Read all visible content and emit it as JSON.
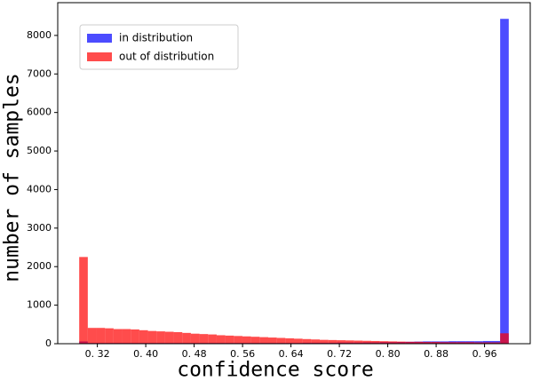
{
  "chart_data": {
    "type": "histogram",
    "xlabel": "confidence score",
    "ylabel": "number of samples",
    "bins": [
      0.29,
      0.3042,
      0.3184,
      0.3326,
      0.3468,
      0.361,
      0.3752,
      0.3894,
      0.4036,
      0.4178,
      0.432,
      0.4462,
      0.4604,
      0.4746,
      0.4888,
      0.503,
      0.5172,
      0.5314,
      0.5456,
      0.5598,
      0.574,
      0.5882,
      0.6024,
      0.6166,
      0.6308,
      0.645,
      0.6592,
      0.6734,
      0.6876,
      0.7018,
      0.716,
      0.7302,
      0.7444,
      0.7586,
      0.7728,
      0.787,
      0.8012,
      0.8154,
      0.8296,
      0.8438,
      0.858,
      0.8722,
      0.8864,
      0.9006,
      0.9148,
      0.929,
      0.9432,
      0.9574,
      0.9716,
      0.9858,
      1.0
    ],
    "series": [
      {
        "name": "in distribution",
        "color": "#0000ff",
        "values": [
          60,
          20,
          20,
          20,
          20,
          20,
          20,
          20,
          20,
          20,
          20,
          20,
          20,
          20,
          20,
          20,
          20,
          20,
          20,
          20,
          20,
          20,
          20,
          20,
          20,
          20,
          25,
          25,
          25,
          25,
          30,
          30,
          30,
          35,
          35,
          40,
          40,
          45,
          50,
          55,
          60,
          60,
          60,
          65,
          65,
          65,
          65,
          70,
          70,
          8430
        ]
      },
      {
        "name": "out of distribution",
        "color": "#ff0000",
        "values": [
          2250,
          410,
          410,
          400,
          380,
          380,
          370,
          350,
          330,
          320,
          310,
          300,
          280,
          260,
          250,
          240,
          220,
          210,
          200,
          190,
          180,
          170,
          160,
          150,
          140,
          130,
          120,
          110,
          100,
          95,
          90,
          85,
          80,
          75,
          70,
          65,
          60,
          55,
          50,
          50,
          45,
          45,
          40,
          40,
          40,
          40,
          35,
          35,
          35,
          270
        ]
      }
    ],
    "xlim": [
      0.2545,
      1.0355
    ],
    "ylim": [
      0,
      8850
    ],
    "xticks": [
      {
        "value": 0.32,
        "label": "0. 32"
      },
      {
        "value": 0.4,
        "label": "0. 40"
      },
      {
        "value": 0.48,
        "label": "0. 48"
      },
      {
        "value": 0.56,
        "label": "0. 56"
      },
      {
        "value": 0.64,
        "label": "0. 64"
      },
      {
        "value": 0.72,
        "label": "0. 72"
      },
      {
        "value": 0.8,
        "label": "0. 80"
      },
      {
        "value": 0.88,
        "label": "0. 88"
      },
      {
        "value": 0.96,
        "label": "0. 96"
      }
    ],
    "yticks": [
      0,
      1000,
      2000,
      3000,
      4000,
      5000,
      6000,
      7000,
      8000
    ],
    "legend": "upper left"
  }
}
